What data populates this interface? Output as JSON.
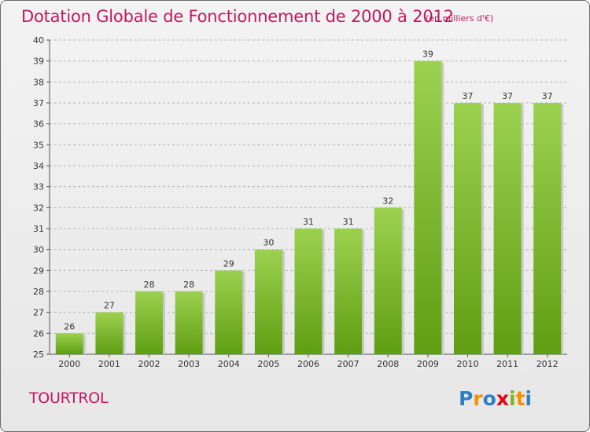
{
  "header": {
    "title": "Dotation Globale de Fonctionnement de 2000 à 2012",
    "unit": "(en milliers d'€)"
  },
  "footer": {
    "commune": "TOURTROL",
    "logo_text": "Proxiti"
  },
  "colors": {
    "title": "#c2185b",
    "bar_top": "#9cd14f",
    "bar_bottom": "#5f9e13",
    "grid": "#b5b5b5"
  },
  "chart_data": {
    "type": "bar",
    "title": "Dotation Globale de Fonctionnement de 2000 à 2012",
    "subtitle": "(en milliers d'€)",
    "xlabel": "",
    "ylabel": "",
    "categories": [
      "2000",
      "2001",
      "2002",
      "2003",
      "2004",
      "2005",
      "2006",
      "2007",
      "2008",
      "2009",
      "2010",
      "2011",
      "2012"
    ],
    "values": [
      26,
      27,
      28,
      28,
      29,
      30,
      31,
      31,
      32,
      39,
      37,
      37,
      37
    ],
    "ylim": [
      25,
      40
    ],
    "yticks": [
      25,
      26,
      27,
      28,
      29,
      30,
      31,
      32,
      33,
      34,
      35,
      36,
      37,
      38,
      39,
      40
    ],
    "grid": true,
    "data_labels": true
  }
}
